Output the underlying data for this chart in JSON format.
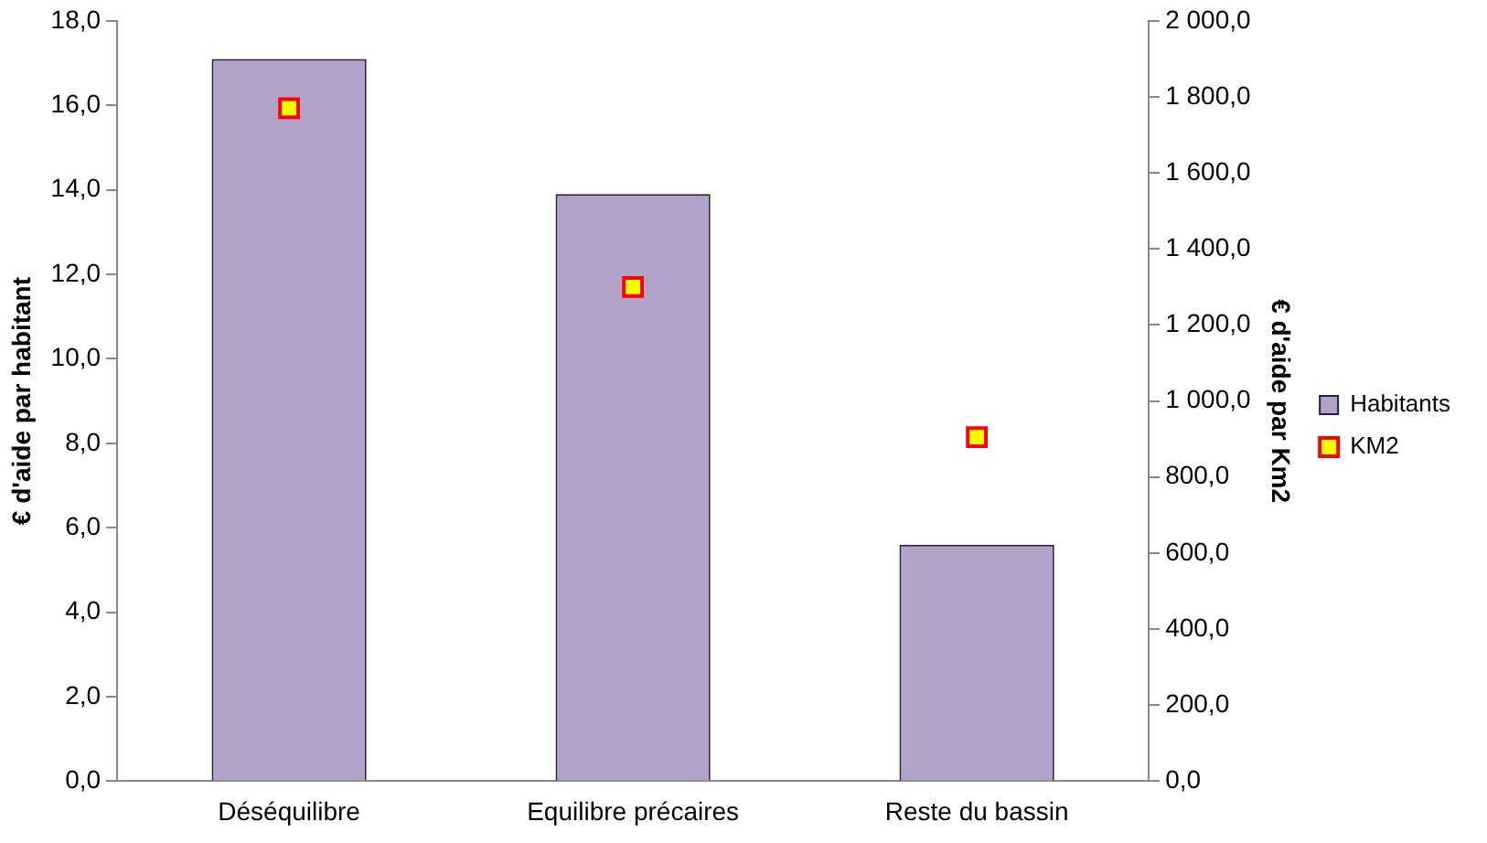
{
  "chart_data": {
    "type": "bar",
    "categories": [
      "Déséquilibre",
      "Equilibre précaires",
      "Reste du bassin"
    ],
    "series": [
      {
        "name": "Habitants",
        "color": "#b1a2c8",
        "values": [
          17.1,
          13.9,
          5.6
        ]
      },
      {
        "name": "KM2",
        "type": "scatter",
        "axis": "y2",
        "color": "#ffff00",
        "values": [
          1770,
          1300,
          905
        ]
      }
    ],
    "ylabel": "€ d'aide par habitant",
    "y2label": "€ d'aide par Km2",
    "ylim": [
      0,
      18
    ],
    "yticks": [
      {
        "value": 0,
        "label": "0,0"
      },
      {
        "value": 2,
        "label": "2,0"
      },
      {
        "value": 4,
        "label": "4,0"
      },
      {
        "value": 6,
        "label": "6,0"
      },
      {
        "value": 8,
        "label": "8,0"
      },
      {
        "value": 10,
        "label": "10,0"
      },
      {
        "value": 12,
        "label": "12,0"
      },
      {
        "value": 14,
        "label": "14,0"
      },
      {
        "value": 16,
        "label": "16,0"
      },
      {
        "value": 18,
        "label": "18,0"
      }
    ],
    "y2lim": [
      0,
      2000
    ],
    "y2ticks": [
      {
        "value": 0,
        "label": "0,0"
      },
      {
        "value": 200,
        "label": "200,0"
      },
      {
        "value": 400,
        "label": "400,0"
      },
      {
        "value": 600,
        "label": "600,0"
      },
      {
        "value": 800,
        "label": "800,0"
      },
      {
        "value": 1000,
        "label": "1 000,0"
      },
      {
        "value": 1200,
        "label": "1 200,0"
      },
      {
        "value": 1400,
        "label": "1 400,0"
      },
      {
        "value": 1600,
        "label": "1 600,0"
      },
      {
        "value": 1800,
        "label": "1 800,0"
      },
      {
        "value": 2000,
        "label": "2 000,0"
      }
    ],
    "grid": false,
    "legend": "right",
    "marker": "square"
  }
}
